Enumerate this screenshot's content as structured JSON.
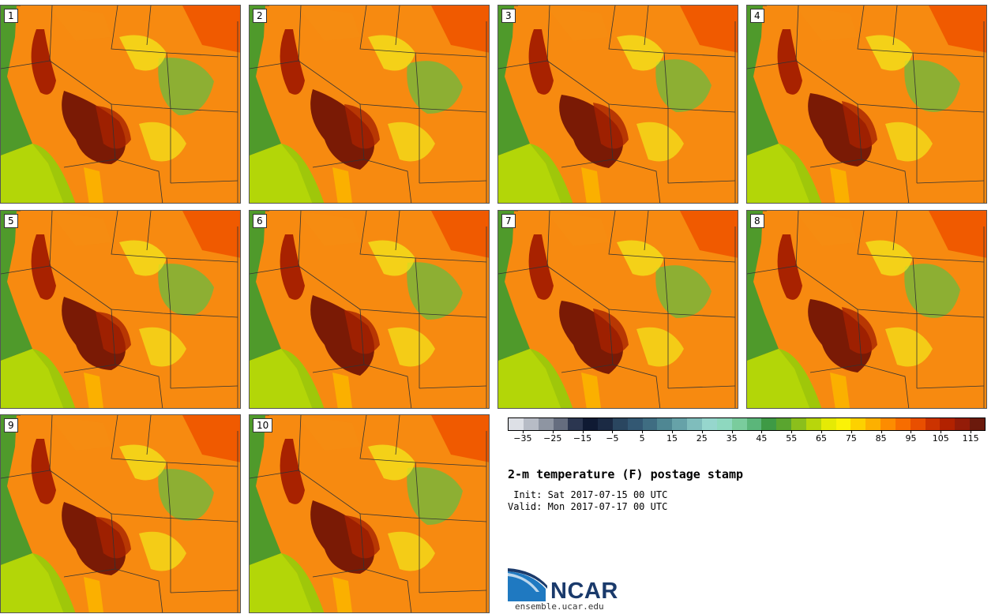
{
  "members": [
    "1",
    "2",
    "3",
    "4",
    "5",
    "6",
    "7",
    "8",
    "9",
    "10"
  ],
  "colorbar": {
    "colors": [
      "#dde0e6",
      "#b7bcc6",
      "#8e95a2",
      "#656d7f",
      "#2b3650",
      "#0f1a33",
      "#1b2a44",
      "#2a4660",
      "#335873",
      "#3f6d82",
      "#4f8793",
      "#66a2a8",
      "#7fbdbc",
      "#96d6cd",
      "#8ed8bf",
      "#7acc9d",
      "#5bb67a",
      "#3e9a45",
      "#5aa52f",
      "#8bbf1c",
      "#b8d60b",
      "#e5ea05",
      "#fbf207",
      "#fdd100",
      "#fdb000",
      "#fd8c00",
      "#f76d00",
      "#e94f00",
      "#cc3300",
      "#b22200",
      "#941c08",
      "#6b1a0c"
    ],
    "tick_labels": [
      "−35",
      "−25",
      "−15",
      "−5",
      "5",
      "15",
      "25",
      "35",
      "45",
      "55",
      "65",
      "75",
      "85",
      "95",
      "105",
      "115"
    ]
  },
  "title": "2-m temperature (F) postage stamp",
  "init": " Init: Sat 2017-07-15 00 UTC",
  "valid": "Valid: Mon 2017-07-17 00 UTC",
  "logo_text": "NCAR",
  "site": "ensemble.ucar.edu",
  "palette": {
    "ocean_deep": "#4f9a2b",
    "ocean_shallow": "#b3d608",
    "land": "#f78a10",
    "hot": "#a82200",
    "hotter": "#7a1a05",
    "cool": "#f3e21a",
    "cooler": "#7ab53a",
    "border": "#333333"
  }
}
